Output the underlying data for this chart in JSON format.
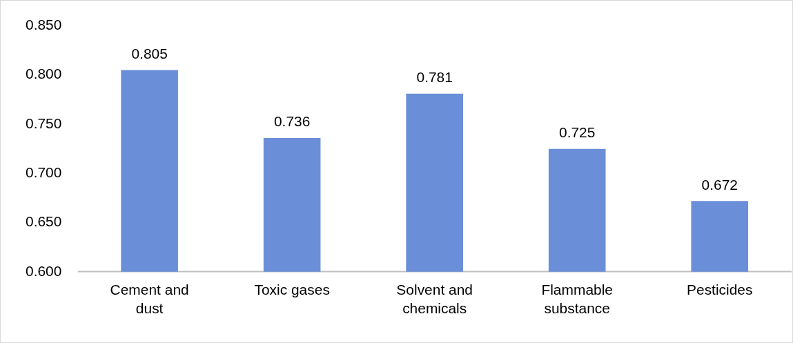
{
  "chart_data": {
    "type": "bar",
    "categories": [
      "Cement and dust",
      "Toxic gases",
      "Solvent and chemicals",
      "Flammable substance",
      "Pesticides"
    ],
    "values": [
      0.805,
      0.736,
      0.781,
      0.725,
      0.672
    ],
    "color": "#6a8fd8",
    "ylim": [
      0.6,
      0.85
    ],
    "yticks": [
      {
        "value": 0.6,
        "label": "0.600"
      },
      {
        "value": 0.65,
        "label": "0.650"
      },
      {
        "value": 0.7,
        "label": "0.700"
      },
      {
        "value": 0.75,
        "label": "0.750"
      },
      {
        "value": 0.8,
        "label": "0.800"
      },
      {
        "value": 0.85,
        "label": "0.850"
      }
    ],
    "grid": false,
    "legend": false,
    "data_labels": true
  }
}
